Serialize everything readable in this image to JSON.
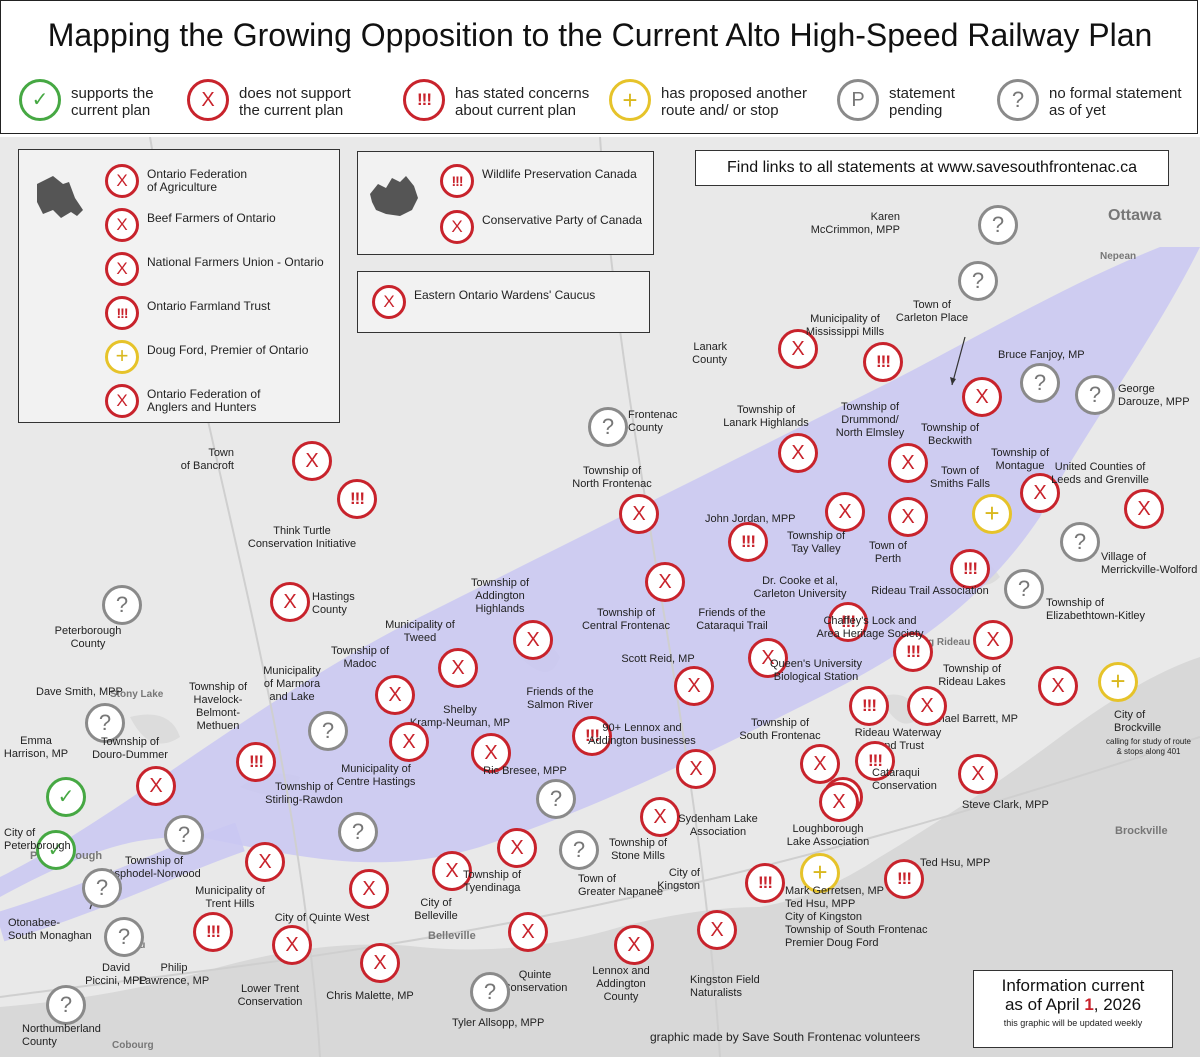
{
  "title": "Mapping the Growing Opposition to the  Current Alto High-Speed Railway Plan",
  "legend": [
    {
      "icon": "check",
      "glyph": "✓",
      "text": "supports the\ncurrent plan"
    },
    {
      "icon": "x",
      "glyph": "X",
      "text": "does not support\nthe current plan"
    },
    {
      "icon": "ex",
      "glyph": "!!!",
      "text": "has stated concerns\nabout current plan"
    },
    {
      "icon": "plus",
      "glyph": "+",
      "text": "has proposed another\nroute and/ or stop"
    },
    {
      "icon": "p",
      "glyph": "P",
      "text": "statement\npending"
    },
    {
      "icon": "q",
      "glyph": "?",
      "text": "no formal statement\nas of yet"
    }
  ],
  "ontario_box": {
    "items": [
      {
        "icon": "x",
        "glyph": "X",
        "text": "Ontario Federation\nof Agriculture"
      },
      {
        "icon": "x",
        "glyph": "X",
        "text": "Beef Farmers of Ontario"
      },
      {
        "icon": "x",
        "glyph": "X",
        "text": "National Farmers Union - Ontario"
      },
      {
        "icon": "ex",
        "glyph": "!!!",
        "text": "Ontario Farmland Trust"
      },
      {
        "icon": "plus",
        "glyph": "+",
        "text": "Doug Ford, Premier of Ontario"
      },
      {
        "icon": "x",
        "glyph": "X",
        "text": "Ontario Federation of\nAnglers and Hunters"
      }
    ]
  },
  "canada_box": {
    "items": [
      {
        "icon": "ex",
        "glyph": "!!!",
        "text": "Wildlife Preservation Canada"
      },
      {
        "icon": "x",
        "glyph": "X",
        "text": "Conservative Party of Canada"
      }
    ]
  },
  "wardens_box": {
    "items": [
      {
        "icon": "x",
        "glyph": "X",
        "text": "Eastern Ontario Wardens' Caucus"
      }
    ]
  },
  "links_text": "Find links to all statements at www.savesouthfrontenac.ca",
  "info": {
    "line1": "Information current",
    "line2_prefix": "as of April ",
    "line2_day": "1",
    "line2_suffix": ", 2026",
    "note": "this graphic will be updated weekly"
  },
  "credit": "graphic made by Save South Frontenac volunteers",
  "cities": [
    {
      "name": "Ottawa"
    },
    {
      "name": "Nepean"
    },
    {
      "name": "Brockville"
    },
    {
      "name": "Peterborough"
    },
    {
      "name": "Belleville"
    },
    {
      "name": "Cobourg"
    },
    {
      "name": "Stony Lake"
    },
    {
      "name": "Rideau"
    },
    {
      "name": "Big Rideau Lake"
    }
  ],
  "markers": [
    {
      "icon": "q",
      "glyph": "?",
      "label": "Karen\nMcCrimmon, MPP"
    },
    {
      "icon": "q",
      "glyph": "?",
      "label": "Town of\nCarleton Place"
    },
    {
      "icon": "x",
      "glyph": "X",
      "label": "Lanark\nCounty"
    },
    {
      "icon": "ex",
      "glyph": "!!!",
      "label": "Municipality of\nMississippi Mills"
    },
    {
      "icon": "q",
      "glyph": "?",
      "label": "Bruce Fanjoy, MP"
    },
    {
      "icon": "q",
      "glyph": "?",
      "label": "George\nDarouze, MPP"
    },
    {
      "icon": "x",
      "glyph": "X",
      "label": "Township of\nBeckwith"
    },
    {
      "icon": "q",
      "glyph": "?",
      "label": "Frontenac\nCounty"
    },
    {
      "icon": "x",
      "glyph": "X",
      "label": "Township of\nLanark Highlands"
    },
    {
      "icon": "x",
      "glyph": "X",
      "label": "Township of\nDrummond/\nNorth Elmsley"
    },
    {
      "icon": "x",
      "glyph": "X",
      "label": "Township of\nMontague"
    },
    {
      "icon": "x",
      "glyph": "X",
      "label": "United Counties of\nLeeds and Grenville"
    },
    {
      "icon": "x",
      "glyph": "X",
      "label": "Town\nof Bancroft"
    },
    {
      "icon": "ex",
      "glyph": "!!!",
      "label": "Think Turtle\nConservation Initiative"
    },
    {
      "icon": "x",
      "glyph": "X",
      "label": "Township of\nNorth Frontenac"
    },
    {
      "icon": "plus",
      "glyph": "+",
      "label": "Town of\nSmiths Falls"
    },
    {
      "icon": "ex",
      "glyph": "!!!",
      "label": "John Jordan, MPP"
    },
    {
      "icon": "x",
      "glyph": "X",
      "label": "Township of\nTay Valley"
    },
    {
      "icon": "x",
      "glyph": "X",
      "label": "Town of\nPerth"
    },
    {
      "icon": "q",
      "glyph": "?",
      "label": "Village of\nMerrickville-Wolford"
    },
    {
      "icon": "ex",
      "glyph": "!!!",
      "label": "Rideau Trail Association"
    },
    {
      "icon": "q",
      "glyph": "?",
      "label": "Township of\nElizabethtown-Kitley"
    },
    {
      "icon": "q",
      "glyph": "?",
      "label": "Peterborough\nCounty"
    },
    {
      "icon": "x",
      "glyph": "X",
      "label": "Hastings\nCounty"
    },
    {
      "icon": "x",
      "glyph": "X",
      "label": "Township of\nAddington\nHighlands"
    },
    {
      "icon": "x",
      "glyph": "X",
      "label": "Township of\nCentral Frontenac"
    },
    {
      "icon": "ex",
      "glyph": "!!!",
      "label": "Dr. Cooke et al,\nCarleton University"
    },
    {
      "icon": "ex",
      "glyph": "!!!",
      "label": "Chaffey's Lock and\nArea Heritage Society"
    },
    {
      "icon": "x",
      "glyph": "X",
      "label": "Township of\nRideau Lakes"
    },
    {
      "icon": "x",
      "glyph": "X",
      "label": "Municipality of\nTweed"
    },
    {
      "icon": "x",
      "glyph": "X",
      "label": "Friends of the\nCataraqui Trail"
    },
    {
      "icon": "x",
      "glyph": "X",
      "label": "Township of\nMadoc"
    },
    {
      "icon": "q",
      "glyph": "?",
      "label": "Municipality\nof Marmora\nand Lake"
    },
    {
      "icon": "x",
      "glyph": "X",
      "label": "Scott Reid, MP"
    },
    {
      "icon": "ex",
      "glyph": "!!!",
      "label": "Queen's University\nBiological Station"
    },
    {
      "icon": "x",
      "glyph": "X",
      "label": "Michael Barrett, MP"
    },
    {
      "icon": "plus",
      "glyph": "+",
      "label": "City of\nBrockville"
    },
    {
      "icon": "q",
      "glyph": "?",
      "label": "Dave Smith, MPP"
    },
    {
      "icon": "ex",
      "glyph": "!!!",
      "label": "Township of\nHavelock-\nBelmont-\nMethuen"
    },
    {
      "icon": "x",
      "glyph": "X",
      "label": "Shelby\nKramp-Neuman, MP"
    },
    {
      "icon": "ex",
      "glyph": "!!!",
      "label": "Friends of the\nSalmon River"
    },
    {
      "icon": "x",
      "glyph": "X",
      "label": "Rideau Waterway\nLand Trust"
    },
    {
      "icon": "check",
      "glyph": "✓",
      "label": "Emma\nHarrison, MP"
    },
    {
      "icon": "x",
      "glyph": "X",
      "label": "Township of\nDouro-Dummer"
    },
    {
      "icon": "x",
      "glyph": "X",
      "label": "Municipality of\nCentre Hastings"
    },
    {
      "icon": "x",
      "glyph": "X",
      "label": "90+ Lennox and\nAddington businesses"
    },
    {
      "icon": "x",
      "glyph": "X",
      "label": "Township of\nSouth Frontenac"
    },
    {
      "icon": "ex",
      "glyph": "!!!",
      "label": "Cataraqui\nConservation"
    },
    {
      "icon": "x",
      "glyph": "X",
      "label": "Steve Clark, MPP"
    },
    {
      "icon": "q",
      "glyph": "?",
      "label": "Township of\nStirling-Rawdon"
    },
    {
      "icon": "q",
      "glyph": "?",
      "label": "Ric Bresee, MPP"
    },
    {
      "icon": "check",
      "glyph": "✓",
      "label": "City of\nPeterborough"
    },
    {
      "icon": "q",
      "glyph": "?",
      "label": "Township of\nAsphodel-Norwood"
    },
    {
      "icon": "x",
      "glyph": "X",
      "label": "Township of\nStone Mills"
    },
    {
      "icon": "x",
      "glyph": "X",
      "label": "Sydenham Lake\nAssociation"
    },
    {
      "icon": "x",
      "glyph": "X",
      "label": "Loughborough\nLake Association"
    },
    {
      "icon": "x",
      "glyph": "X",
      "label": "Municipality of\nTrent Hills"
    },
    {
      "icon": "x",
      "glyph": "X",
      "label": "City of Quinte West"
    },
    {
      "icon": "x",
      "glyph": "X",
      "label": "City of\nBelleville"
    },
    {
      "icon": "x",
      "glyph": "X",
      "label": "Township of\nTyendinaga"
    },
    {
      "icon": "q",
      "glyph": "?",
      "label": "Town of\nGreater Napanee"
    },
    {
      "icon": "ex",
      "glyph": "!!!",
      "label": "City of\nKingston"
    },
    {
      "icon": "plus",
      "glyph": "+",
      "label": "Mark Gerretsen, MP\nTed Hsu, MPP\nCity of Kingston\nTownship of South Frontenac\nPremier Doug Ford"
    },
    {
      "icon": "ex",
      "glyph": "!!!",
      "label": "Ted Hsu, MPP"
    },
    {
      "icon": "q",
      "glyph": "?",
      "label": "Otonabee-\nSouth Monaghan"
    },
    {
      "icon": "q",
      "glyph": "?",
      "label": "David\nPiccini, MPP"
    },
    {
      "icon": "ex",
      "glyph": "!!!",
      "label": "Philip\nLawrence, MP"
    },
    {
      "icon": "x",
      "glyph": "X",
      "label": "Lower Trent\nConservation"
    },
    {
      "icon": "x",
      "glyph": "X",
      "label": "Chris Malette, MP"
    },
    {
      "icon": "x",
      "glyph": "X",
      "label": "Quinte\nConservation"
    },
    {
      "icon": "x",
      "glyph": "X",
      "label": "Lennox and\nAddington\nCounty"
    },
    {
      "icon": "x",
      "glyph": "X",
      "label": "Kingston Field\nNaturalists"
    },
    {
      "icon": "q",
      "glyph": "?",
      "label": "Tyler Allsopp, MPP"
    },
    {
      "icon": "q",
      "glyph": "?",
      "label": "Northumberland\nCounty"
    }
  ],
  "brockville_note": "calling for study of route\n& stops along 401",
  "colors": {
    "x": "#c8232c",
    "ex": "#c8232c",
    "plus": "#e6c32a",
    "q": "#8a8a8a",
    "check": "#46a843",
    "corridor": "#c9c7f2"
  }
}
